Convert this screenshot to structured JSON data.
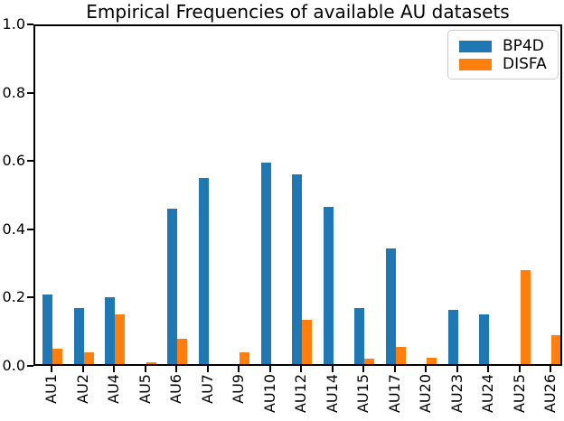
{
  "chart_data": {
    "type": "bar",
    "title": "Empirical Frequencies of available AU datasets",
    "categories": [
      "AU1",
      "AU2",
      "AU4",
      "AU5",
      "AU6",
      "AU7",
      "AU9",
      "AU10",
      "AU12",
      "AU14",
      "AU15",
      "AU17",
      "AU20",
      "AU23",
      "AU24",
      "AU25",
      "AU26"
    ],
    "series": [
      {
        "name": "BP4D",
        "color": "#1f77b4",
        "values": [
          0.21,
          0.17,
          0.2,
          0,
          0.46,
          0.55,
          0,
          0.595,
          0.56,
          0.465,
          0.17,
          0.345,
          0,
          0.165,
          0.15,
          0,
          0
        ]
      },
      {
        "name": "DISFA",
        "color": "#ff7f0e",
        "values": [
          0.05,
          0.04,
          0.15,
          0.01,
          0.08,
          0,
          0.04,
          0,
          0.135,
          0,
          0.02,
          0.055,
          0.025,
          0,
          0,
          0.28,
          0.09
        ]
      }
    ],
    "xlabel": "",
    "ylabel": "",
    "ylim": [
      0,
      1.0
    ],
    "y_ticks": [
      0.0,
      0.2,
      0.4,
      0.6,
      0.8,
      1.0
    ],
    "y_tick_labels": [
      "0.0",
      "0.2",
      "0.4",
      "0.6",
      "0.8",
      "1.0"
    ],
    "grid": false,
    "legend_position": "upper right"
  }
}
